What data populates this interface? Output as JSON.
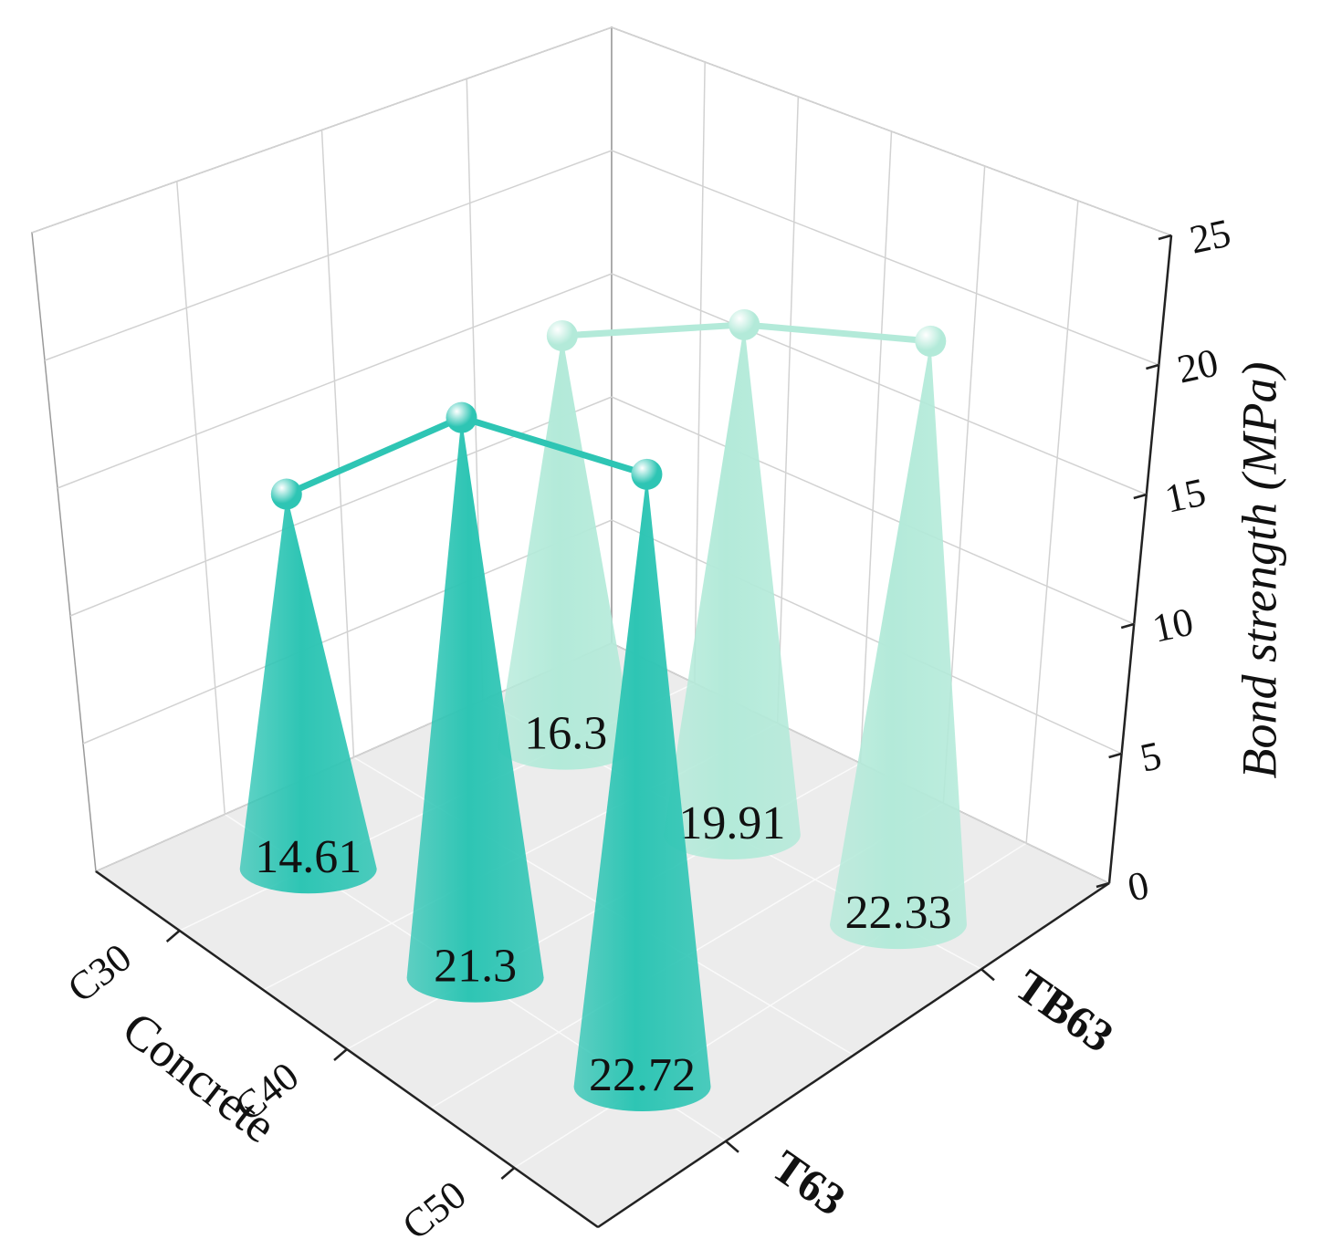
{
  "chart_data": {
    "type": "cone3d",
    "xlabel": "Concrete",
    "zlabel": "Bond strength (MPa)",
    "categories": [
      "C30",
      "C40",
      "C50"
    ],
    "series": [
      {
        "name": "T63",
        "color": "#2ec5b4",
        "values": [
          14.61,
          21.3,
          22.72
        ]
      },
      {
        "name": "TB63",
        "color": "#b3ead9",
        "values": [
          16.3,
          19.91,
          22.33
        ]
      }
    ],
    "zlim": [
      0,
      25
    ],
    "zticks": [
      0,
      5,
      10,
      15,
      20,
      25
    ],
    "grid": true
  }
}
